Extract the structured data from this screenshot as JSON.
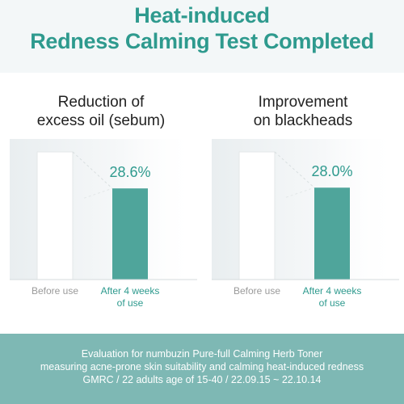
{
  "header": {
    "line1": "Heat-induced",
    "line2": "Redness Calming Test Completed"
  },
  "colors": {
    "accent": "#2e9a8e",
    "bar_after": "#4fa59b",
    "bar_before": "#ffffff",
    "footer_bg": "#7eb8b4",
    "header_bg": "#f3f7f8"
  },
  "chart_data": [
    {
      "type": "bar",
      "title_lines": [
        "Reduction of",
        "excess oil (sebum)"
      ],
      "categories": [
        "Before use",
        "After 4 weeks of use"
      ],
      "category_lines": [
        [
          "Before use"
        ],
        [
          "After 4 weeks",
          "of use"
        ]
      ],
      "values": [
        100,
        71.4
      ],
      "data_label": "28.6%",
      "ylim": [
        0,
        100
      ]
    },
    {
      "type": "bar",
      "title_lines": [
        "Improvement",
        "on blackheads"
      ],
      "categories": [
        "Before use",
        "After 4 weeks of use"
      ],
      "category_lines": [
        [
          "Before use"
        ],
        [
          "After 4 weeks",
          "of use"
        ]
      ],
      "values": [
        100,
        72.0
      ],
      "data_label": "28.0%",
      "ylim": [
        0,
        100
      ]
    }
  ],
  "footer": {
    "line1": "Evaluation for numbuzin Pure-full Calming Herb Toner",
    "line2": "measuring acne-prone skin suitability and calming heat-induced redness",
    "line3": "GMRC / 22 adults age of 15-40 / 22.09.15 ~ 22.10.14"
  }
}
